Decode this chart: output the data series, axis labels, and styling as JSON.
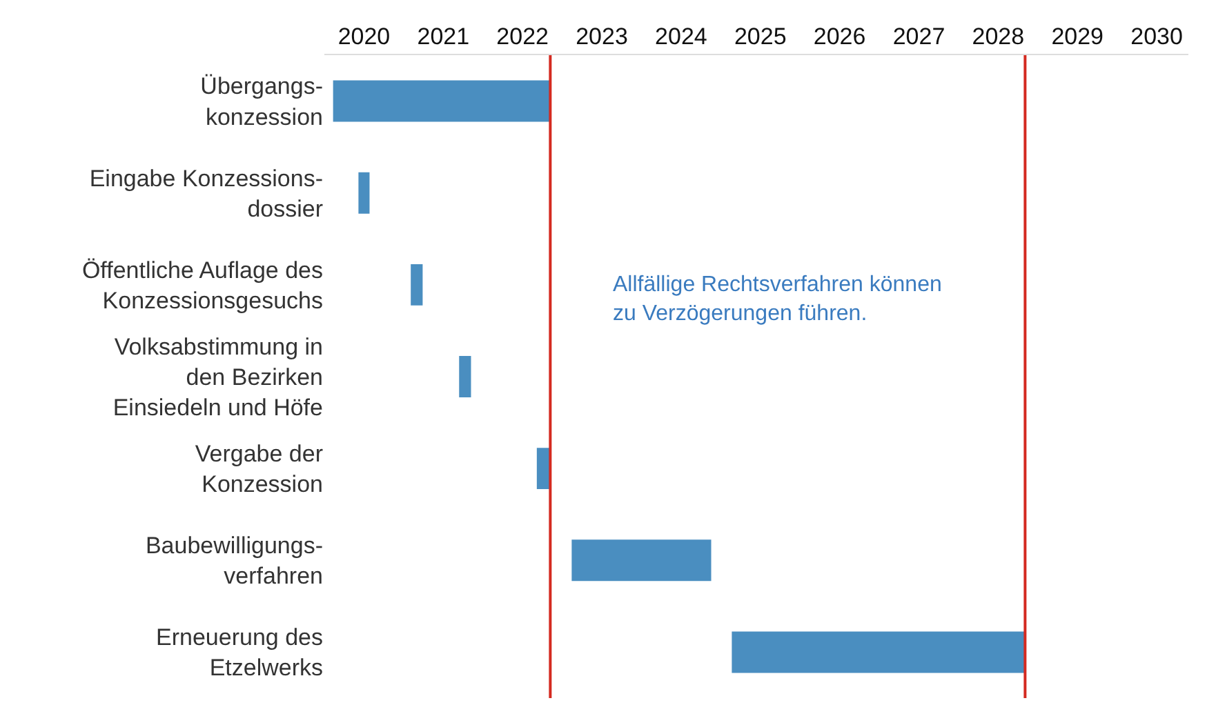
{
  "chart_data": {
    "type": "bar",
    "orientation": "horizontal",
    "categories": [
      "Übergangs-\nkonzession",
      "Eingabe Konzessions-\ndossier",
      "Öffentliche Auflage des\nKonzessionsgesuchs",
      "Volksabstimmung in\nden Bezirken\nEinsiedeln und Höfe",
      "Vergabe der\nKonzession",
      "Baubewilligungs-\nverfahren",
      "Erneuerung des\nEtzelwerks"
    ],
    "base": [
      2019.61,
      2019.93,
      2020.59,
      2021.2,
      2022.18,
      2022.62,
      2024.64
    ],
    "values": [
      2.75,
      0.14,
      0.15,
      0.15,
      0.17,
      1.76,
      3.7
    ],
    "color": "#4a8ec0",
    "xlim": [
      2019.5,
      2030.4
    ],
    "xticks": [
      2020,
      2021,
      2022,
      2023,
      2024,
      2025,
      2026,
      2027,
      2028,
      2029,
      2030
    ],
    "ref_lines": [
      {
        "axis": "x",
        "value": 2022.35,
        "color": "#d42a20"
      },
      {
        "axis": "x",
        "value": 2028.34,
        "color": "#d42a20"
      }
    ],
    "annotations": [
      "Allfällige Rechtsverfahren können\nzu Verzögerungen führen."
    ]
  }
}
